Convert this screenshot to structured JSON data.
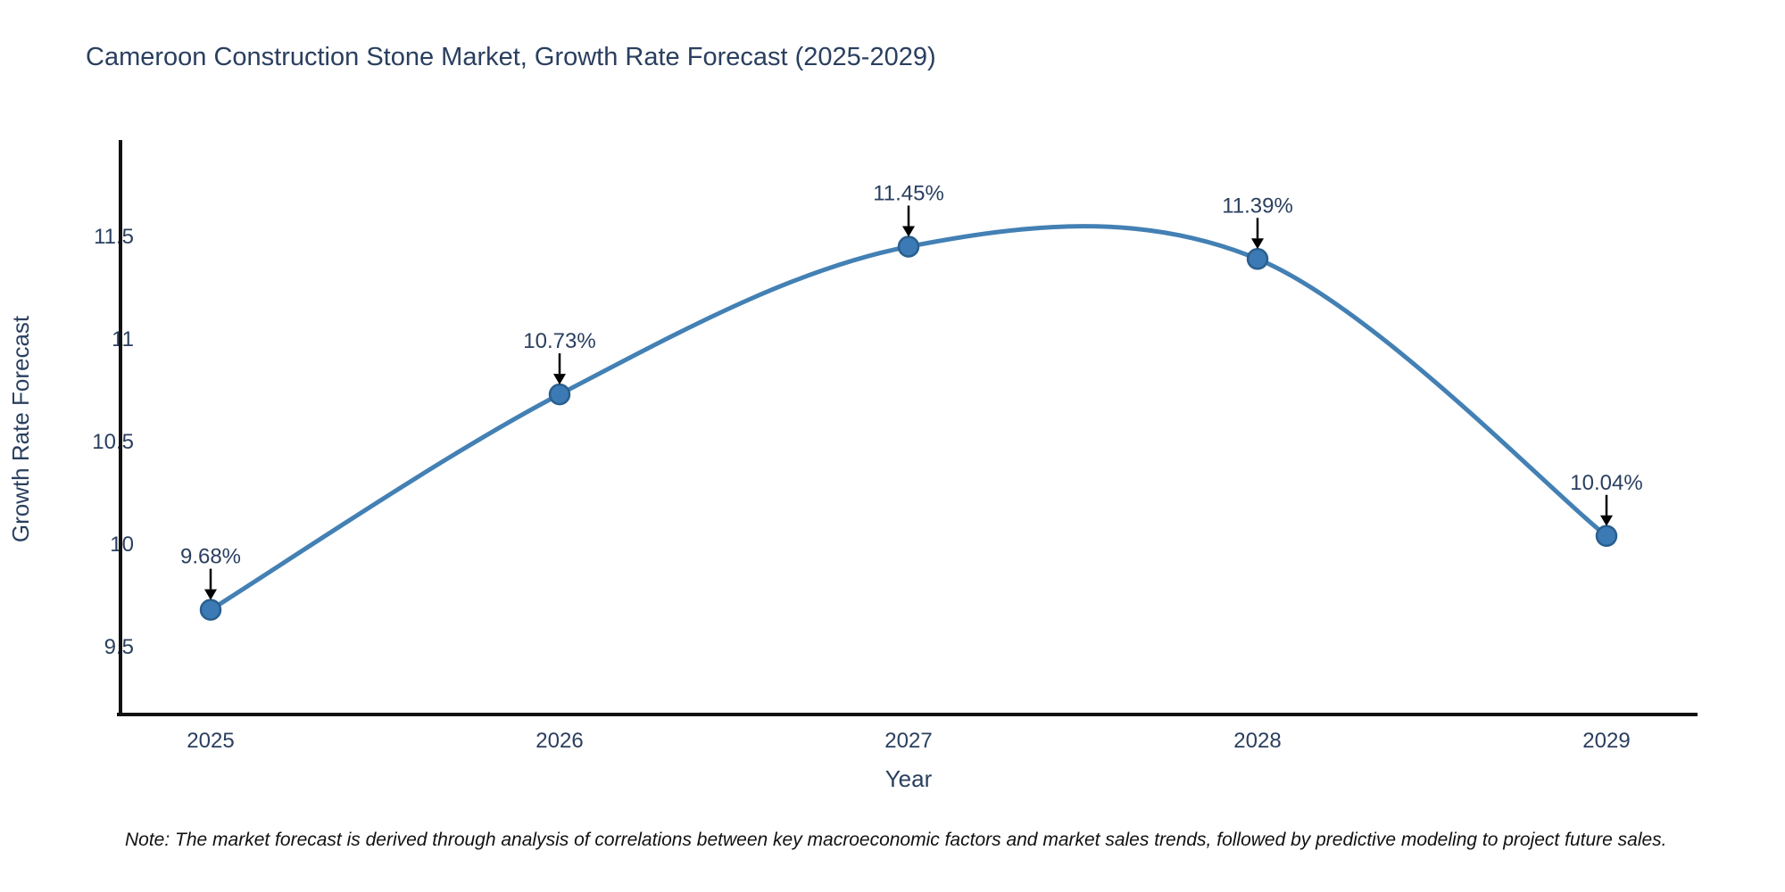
{
  "title": "Cameroon Construction Stone Market, Growth Rate Forecast (2025-2029)",
  "note": "Note: The market forecast is derived through analysis of correlations between key macroeconomic factors and market sales trends, followed by predictive modeling to project future sales.",
  "chart_data": {
    "type": "line",
    "line_shape": "spline",
    "title": "Cameroon Construction Stone Market, Growth Rate Forecast (2025-2029)",
    "xlabel": "Year",
    "ylabel": "Growth Rate Forecast",
    "categories": [
      "2025",
      "2026",
      "2027",
      "2028",
      "2029"
    ],
    "values": [
      9.68,
      10.73,
      11.45,
      11.39,
      10.04
    ],
    "point_labels": [
      "9.68%",
      "10.73%",
      "11.45%",
      "11.39%",
      "10.04%"
    ],
    "y_tick_labels": [
      "9.5",
      "10",
      "10.5",
      "11",
      "11.5"
    ],
    "y_tick_values": [
      9.5,
      10,
      10.5,
      11,
      11.5
    ],
    "ylim": [
      9.17,
      11.96
    ],
    "grid": false,
    "legend": "none",
    "annotation_arrows": "down-to-point",
    "colors": {
      "line": "#4380b4",
      "marker_fill": "#3c7ab5",
      "marker_edge": "#2a5f8e",
      "text": "#2a3f5f",
      "axis": "#111111",
      "arrow": "#000000",
      "note_text": "#111111"
    }
  }
}
